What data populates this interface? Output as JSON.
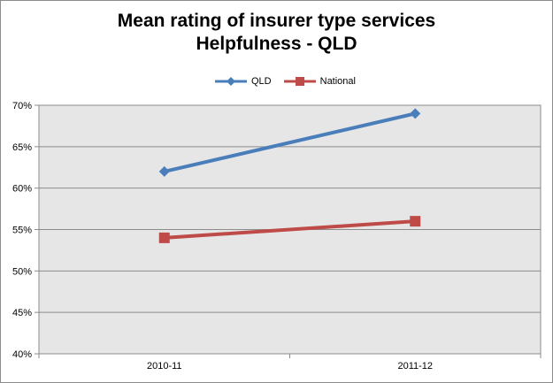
{
  "chart_data": {
    "type": "line",
    "title_line1": "Mean rating of insurer type services",
    "title_line2": "Helpfulness - QLD",
    "categories": [
      "2010-11",
      "2011-12"
    ],
    "series": [
      {
        "name": "QLD",
        "values": [
          62,
          69
        ],
        "color": "#4a7ebb",
        "marker": "diamond"
      },
      {
        "name": "National",
        "values": [
          54,
          56
        ],
        "color": "#be4b48",
        "marker": "square"
      }
    ],
    "ylim": [
      40,
      70
    ],
    "yticks": [
      "40%",
      "45%",
      "50%",
      "55%",
      "60%",
      "65%",
      "70%"
    ],
    "yunit": "%",
    "grid": true,
    "plot_background": "#e6e6e6",
    "legend_position": "top"
  }
}
